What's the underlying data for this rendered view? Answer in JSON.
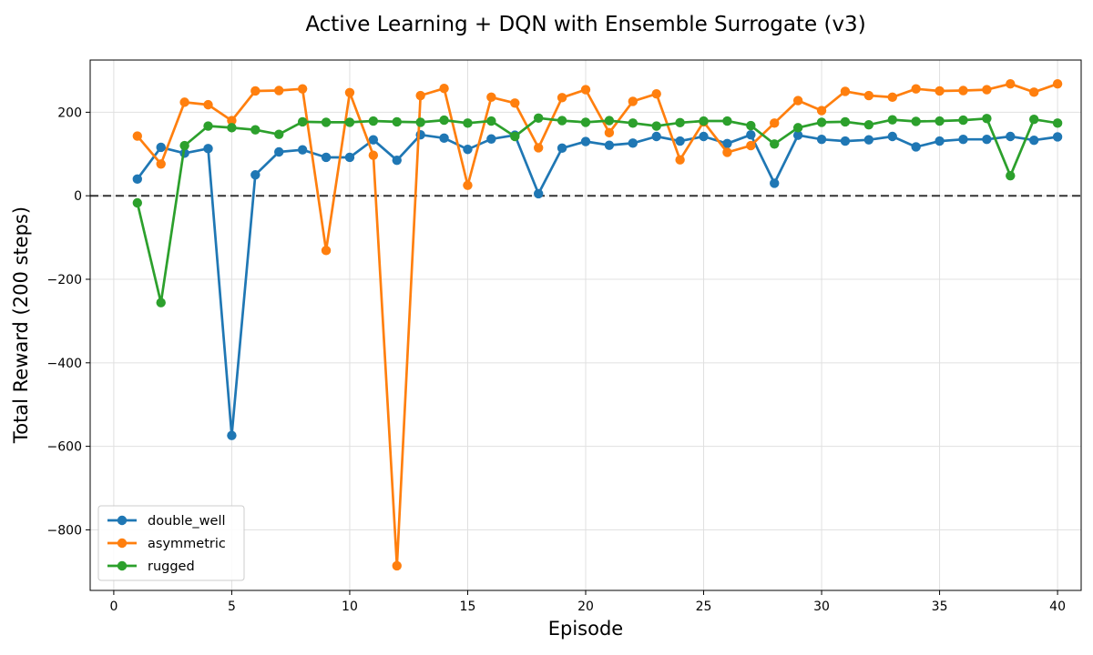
{
  "chart_data": {
    "type": "line",
    "title": "Active Learning + DQN with Ensemble Surrogate (v3)",
    "xlabel": "Episode",
    "ylabel": "Total Reward (200 steps)",
    "xlim": [
      -1,
      41
    ],
    "ylim": [
      -945,
      325
    ],
    "xticks": [
      0,
      5,
      10,
      15,
      20,
      25,
      30,
      35,
      40
    ],
    "xtick_labels": [
      "0",
      "5",
      "10",
      "15",
      "20",
      "25",
      "30",
      "35",
      "40"
    ],
    "yticks": [
      -800,
      -600,
      -400,
      -200,
      0,
      200
    ],
    "ytick_labels": [
      "−800",
      "−600",
      "−400",
      "−200",
      "0",
      "200"
    ],
    "grid": true,
    "reference_line": {
      "y": 0,
      "style": "dashed",
      "color": "#333333"
    },
    "legend_position": "lower-left",
    "x": [
      1,
      2,
      3,
      4,
      5,
      6,
      7,
      8,
      9,
      10,
      11,
      12,
      13,
      14,
      15,
      16,
      17,
      18,
      19,
      20,
      21,
      22,
      23,
      24,
      25,
      26,
      27,
      28,
      29,
      30,
      31,
      32,
      33,
      34,
      35,
      36,
      37,
      38,
      39,
      40
    ],
    "series": [
      {
        "name": "double_well",
        "color": "#1f77b4",
        "values": [
          40,
          116,
          102,
          113,
          -574,
          50,
          105,
          110,
          92,
          92,
          134,
          85,
          146,
          138,
          111,
          136,
          145,
          5,
          114,
          130,
          121,
          126,
          142,
          131,
          142,
          125,
          146,
          30,
          145,
          135,
          131,
          134,
          142,
          117,
          131,
          135,
          135,
          142,
          133,
          141
        ]
      },
      {
        "name": "asymmetric",
        "color": "#ff7f0e",
        "values": [
          143,
          76,
          224,
          218,
          180,
          251,
          252,
          256,
          -131,
          247,
          97,
          -886,
          240,
          257,
          25,
          236,
          222,
          115,
          235,
          254,
          151,
          226,
          244,
          86,
          177,
          104,
          120,
          174,
          228,
          204,
          250,
          240,
          236,
          256,
          251,
          252,
          254,
          268,
          248,
          268
        ]
      },
      {
        "name": "rugged",
        "color": "#2ca02c",
        "values": [
          -17,
          -256,
          120,
          167,
          163,
          158,
          147,
          177,
          176,
          176,
          179,
          177,
          176,
          181,
          174,
          179,
          142,
          186,
          180,
          176,
          180,
          174,
          167,
          175,
          179,
          179,
          168,
          124,
          163,
          176,
          177,
          170,
          182,
          178,
          179,
          181,
          185,
          48,
          183,
          174
        ]
      }
    ]
  }
}
